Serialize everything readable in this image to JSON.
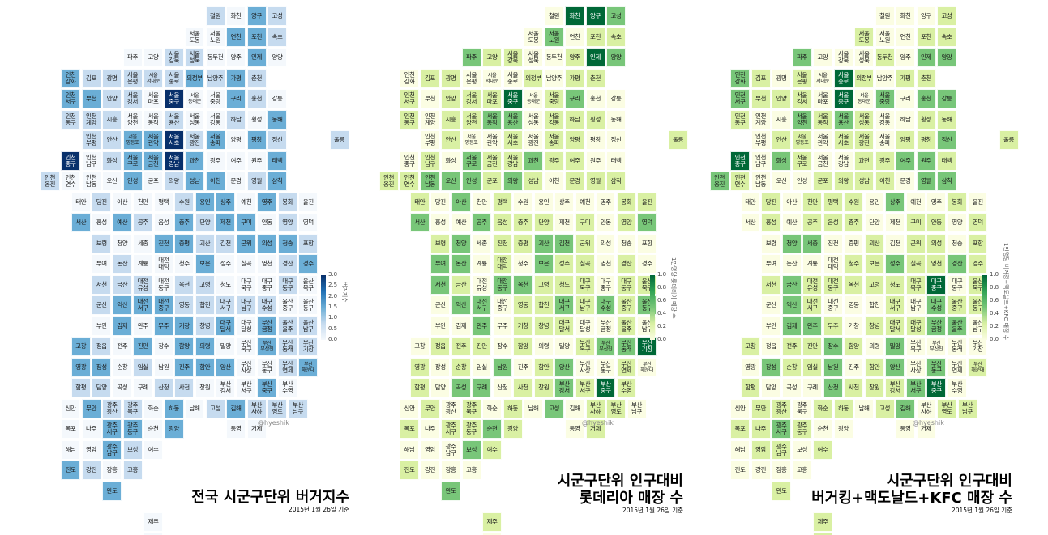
{
  "panels": [
    {
      "title_lines": [
        "전국 시군구단위 버거지수"
      ],
      "date": "2015년 1월 26일 기준",
      "credit": "@hyeshik",
      "legend_label": "버거지수",
      "legend_ticks": [
        "3.0",
        "2.5",
        "2.0",
        "1.5",
        "1.0",
        "0.5",
        "0.0"
      ],
      "palette": [
        "#f4f8fc",
        "#c6dbef",
        "#6baed6",
        "#2171b5",
        "#08306b"
      ],
      "max": 3.0,
      "highlight": [
        "인천중구",
        "서울중구",
        "서울강남",
        "서울서초"
      ]
    },
    {
      "title_lines": [
        "시군구단위 인구대비",
        "롯데리아 매장 수"
      ],
      "date": "2015년 1월 26일 기준",
      "credit": "@hyeshik",
      "legend_label": "1만명당 롯데리아 매장 수",
      "legend_ticks": [
        "1.0",
        "0.8",
        "0.6",
        "0.4",
        "0.2",
        "0.0"
      ],
      "palette": [
        "#fbfde3",
        "#d9f0a3",
        "#78c679",
        "#31a354",
        "#006837"
      ],
      "max": 1.0,
      "highlight": [
        "화천",
        "양구",
        "인제",
        "서울중구",
        "부산중구",
        "부산기장"
      ]
    },
    {
      "title_lines": [
        "시군구단위 인구대비",
        "버거킹+맥도날드+KFC 매장 수"
      ],
      "date": "2015년 1월 26일 기준",
      "credit": "@hyeshik",
      "legend_label": "1만명당 버거킹+맥도날드+KFC 매장 수",
      "legend_ticks": [
        "1.0",
        "0.8",
        "0.6",
        "0.4",
        "0.2",
        "0.0"
      ],
      "palette": [
        "#fbfde3",
        "#d9f0a3",
        "#78c679",
        "#31a354",
        "#006837"
      ],
      "max": 1.0,
      "highlight": [
        "인천중구",
        "서울중구",
        "서울종로",
        "대구중구",
        "부산중구"
      ]
    }
  ],
  "regions": [
    {
      "n": "철원",
      "c": 7,
      "r": 0
    },
    {
      "n": "화천",
      "c": 8,
      "r": 0
    },
    {
      "n": "양구",
      "c": 9,
      "r": 0
    },
    {
      "n": "고성",
      "c": 10,
      "r": 0
    },
    {
      "n": "서울\n도봉",
      "c": 6,
      "r": 1
    },
    {
      "n": "서울\n노원",
      "c": 7,
      "r": 1
    },
    {
      "n": "연천",
      "c": 8,
      "r": 1
    },
    {
      "n": "포천",
      "c": 9,
      "r": 1
    },
    {
      "n": "속초",
      "c": 10,
      "r": 1
    },
    {
      "n": "파주",
      "c": 3,
      "r": 2
    },
    {
      "n": "고양",
      "c": 4,
      "r": 2
    },
    {
      "n": "서울\n강북",
      "c": 5,
      "r": 2
    },
    {
      "n": "서울\n성북",
      "c": 6,
      "r": 2
    },
    {
      "n": "동두천",
      "c": 7,
      "r": 2
    },
    {
      "n": "양주",
      "c": 8,
      "r": 2
    },
    {
      "n": "인제",
      "c": 9,
      "r": 2
    },
    {
      "n": "양양",
      "c": 10,
      "r": 2
    },
    {
      "n": "인천\n강화",
      "c": 0,
      "r": 3
    },
    {
      "n": "김포",
      "c": 1,
      "r": 3
    },
    {
      "n": "광명",
      "c": 2,
      "r": 3
    },
    {
      "n": "서울\n은평",
      "c": 3,
      "r": 3
    },
    {
      "n": "서울\n서대문",
      "c": 4,
      "r": 3
    },
    {
      "n": "서울\n종로",
      "c": 5,
      "r": 3
    },
    {
      "n": "의정부",
      "c": 6,
      "r": 3
    },
    {
      "n": "남양주",
      "c": 7,
      "r": 3
    },
    {
      "n": "가평",
      "c": 8,
      "r": 3
    },
    {
      "n": "춘천",
      "c": 9,
      "r": 3
    },
    {
      "n": "인천\n서구",
      "c": 0,
      "r": 4
    },
    {
      "n": "부천",
      "c": 1,
      "r": 4
    },
    {
      "n": "안양",
      "c": 2,
      "r": 4
    },
    {
      "n": "서울\n강서",
      "c": 3,
      "r": 4
    },
    {
      "n": "서울\n마포",
      "c": 4,
      "r": 4
    },
    {
      "n": "서울\n중구",
      "c": 5,
      "r": 4
    },
    {
      "n": "서울\n동대문",
      "c": 6,
      "r": 4
    },
    {
      "n": "서울\n중랑",
      "c": 7,
      "r": 4
    },
    {
      "n": "구리",
      "c": 8,
      "r": 4
    },
    {
      "n": "홍천",
      "c": 9,
      "r": 4
    },
    {
      "n": "강릉",
      "c": 10,
      "r": 4
    },
    {
      "n": "인천\n동구",
      "c": 0,
      "r": 5
    },
    {
      "n": "인천\n계양",
      "c": 1,
      "r": 5
    },
    {
      "n": "시흥",
      "c": 2,
      "r": 5
    },
    {
      "n": "서울\n양천",
      "c": 3,
      "r": 5
    },
    {
      "n": "서울\n동작",
      "c": 4,
      "r": 5
    },
    {
      "n": "서울\n용산",
      "c": 5,
      "r": 5
    },
    {
      "n": "서울\n성동",
      "c": 6,
      "r": 5
    },
    {
      "n": "서울\n강동",
      "c": 7,
      "r": 5
    },
    {
      "n": "하남",
      "c": 8,
      "r": 5
    },
    {
      "n": "횡성",
      "c": 9,
      "r": 5
    },
    {
      "n": "동해",
      "c": 10,
      "r": 5
    },
    {
      "n": "인천\n부평",
      "c": 1,
      "r": 6
    },
    {
      "n": "안산",
      "c": 2,
      "r": 6
    },
    {
      "n": "서울\n영등포",
      "c": 3,
      "r": 6
    },
    {
      "n": "서울\n관악",
      "c": 4,
      "r": 6
    },
    {
      "n": "서울\n서초",
      "c": 5,
      "r": 6
    },
    {
      "n": "서울\n광진",
      "c": 6,
      "r": 6
    },
    {
      "n": "서울\n송파",
      "c": 7,
      "r": 6
    },
    {
      "n": "양평",
      "c": 8,
      "r": 6
    },
    {
      "n": "평창",
      "c": 9,
      "r": 6
    },
    {
      "n": "정선",
      "c": 10,
      "r": 6
    },
    {
      "n": "울릉",
      "c": 13,
      "r": 6
    },
    {
      "n": "인천\n중구",
      "c": 0,
      "r": 7
    },
    {
      "n": "인천\n남구",
      "c": 1,
      "r": 7
    },
    {
      "n": "화성",
      "c": 2,
      "r": 7
    },
    {
      "n": "서울\n구로",
      "c": 3,
      "r": 7
    },
    {
      "n": "서울\n금천",
      "c": 4,
      "r": 7
    },
    {
      "n": "서울\n강남",
      "c": 5,
      "r": 7
    },
    {
      "n": "과천",
      "c": 6,
      "r": 7
    },
    {
      "n": "광주",
      "c": 7,
      "r": 7
    },
    {
      "n": "여주",
      "c": 8,
      "r": 7
    },
    {
      "n": "원주",
      "c": 9,
      "r": 7
    },
    {
      "n": "태백",
      "c": 10,
      "r": 7
    },
    {
      "n": "인천\n옹진",
      "c": -1,
      "r": 8
    },
    {
      "n": "인천\n연수",
      "c": 0,
      "r": 8
    },
    {
      "n": "인천\n남동",
      "c": 1,
      "r": 8
    },
    {
      "n": "오산",
      "c": 2,
      "r": 8
    },
    {
      "n": "안성",
      "c": 3,
      "r": 8
    },
    {
      "n": "군포",
      "c": 4,
      "r": 8
    },
    {
      "n": "의왕",
      "c": 5,
      "r": 8
    },
    {
      "n": "성남",
      "c": 6,
      "r": 8
    },
    {
      "n": "이천",
      "c": 7,
      "r": 8
    },
    {
      "n": "문경",
      "c": 8,
      "r": 8
    },
    {
      "n": "영월",
      "c": 9,
      "r": 8
    },
    {
      "n": "삼척",
      "c": 10,
      "r": 8
    },
    {
      "n": "태안",
      "c": 0.5,
      "r": 9
    },
    {
      "n": "당진",
      "c": 1.5,
      "r": 9
    },
    {
      "n": "아산",
      "c": 2.5,
      "r": 9
    },
    {
      "n": "천안",
      "c": 3.5,
      "r": 9
    },
    {
      "n": "평택",
      "c": 4.5,
      "r": 9
    },
    {
      "n": "수원",
      "c": 5.5,
      "r": 9
    },
    {
      "n": "용인",
      "c": 6.5,
      "r": 9
    },
    {
      "n": "상주",
      "c": 7.5,
      "r": 9
    },
    {
      "n": "예천",
      "c": 8.5,
      "r": 9
    },
    {
      "n": "영주",
      "c": 9.5,
      "r": 9
    },
    {
      "n": "봉화",
      "c": 10.5,
      "r": 9
    },
    {
      "n": "울진",
      "c": 11.5,
      "r": 9
    },
    {
      "n": "서산",
      "c": 0.5,
      "r": 10
    },
    {
      "n": "홍성",
      "c": 1.5,
      "r": 10
    },
    {
      "n": "예산",
      "c": 2.5,
      "r": 10
    },
    {
      "n": "공주",
      "c": 3.5,
      "r": 10
    },
    {
      "n": "음성",
      "c": 4.5,
      "r": 10
    },
    {
      "n": "충주",
      "c": 5.5,
      "r": 10
    },
    {
      "n": "단양",
      "c": 6.5,
      "r": 10
    },
    {
      "n": "제천",
      "c": 7.5,
      "r": 10
    },
    {
      "n": "구미",
      "c": 8.5,
      "r": 10
    },
    {
      "n": "안동",
      "c": 9.5,
      "r": 10
    },
    {
      "n": "영양",
      "c": 10.5,
      "r": 10
    },
    {
      "n": "영덕",
      "c": 11.5,
      "r": 10
    },
    {
      "n": "보령",
      "c": 1.5,
      "r": 11
    },
    {
      "n": "청양",
      "c": 2.5,
      "r": 11
    },
    {
      "n": "세종",
      "c": 3.5,
      "r": 11
    },
    {
      "n": "진천",
      "c": 4.5,
      "r": 11
    },
    {
      "n": "증평",
      "c": 5.5,
      "r": 11
    },
    {
      "n": "괴산",
      "c": 6.5,
      "r": 11
    },
    {
      "n": "김천",
      "c": 7.5,
      "r": 11
    },
    {
      "n": "군위",
      "c": 8.5,
      "r": 11
    },
    {
      "n": "의성",
      "c": 9.5,
      "r": 11
    },
    {
      "n": "청송",
      "c": 10.5,
      "r": 11
    },
    {
      "n": "포항",
      "c": 11.5,
      "r": 11
    },
    {
      "n": "부여",
      "c": 1.5,
      "r": 12
    },
    {
      "n": "논산",
      "c": 2.5,
      "r": 12
    },
    {
      "n": "계룡",
      "c": 3.5,
      "r": 12
    },
    {
      "n": "대전\n대덕",
      "c": 4.5,
      "r": 12
    },
    {
      "n": "청주",
      "c": 5.5,
      "r": 12
    },
    {
      "n": "보은",
      "c": 6.5,
      "r": 12
    },
    {
      "n": "성주",
      "c": 7.5,
      "r": 12
    },
    {
      "n": "칠곡",
      "c": 8.5,
      "r": 12
    },
    {
      "n": "영천",
      "c": 9.5,
      "r": 12
    },
    {
      "n": "경산",
      "c": 10.5,
      "r": 12
    },
    {
      "n": "경주",
      "c": 11.5,
      "r": 12
    },
    {
      "n": "서천",
      "c": 1.5,
      "r": 13
    },
    {
      "n": "금산",
      "c": 2.5,
      "r": 13
    },
    {
      "n": "대전\n유성",
      "c": 3.5,
      "r": 13
    },
    {
      "n": "대전\n동구",
      "c": 4.5,
      "r": 13
    },
    {
      "n": "옥천",
      "c": 5.5,
      "r": 13
    },
    {
      "n": "고령",
      "c": 6.5,
      "r": 13
    },
    {
      "n": "청도",
      "c": 7.5,
      "r": 13
    },
    {
      "n": "대구\n북구",
      "c": 8.5,
      "r": 13
    },
    {
      "n": "대구\n중구",
      "c": 9.5,
      "r": 13
    },
    {
      "n": "대구\n동구",
      "c": 10.5,
      "r": 13
    },
    {
      "n": "울산\n북구",
      "c": 11.5,
      "r": 13
    },
    {
      "n": "군산",
      "c": 1.5,
      "r": 14
    },
    {
      "n": "익산",
      "c": 2.5,
      "r": 14
    },
    {
      "n": "대전\n서구",
      "c": 3.5,
      "r": 14
    },
    {
      "n": "대전\n중구",
      "c": 4.5,
      "r": 14
    },
    {
      "n": "영동",
      "c": 5.5,
      "r": 14
    },
    {
      "n": "합천",
      "c": 6.5,
      "r": 14
    },
    {
      "n": "대구\n서구",
      "c": 7.5,
      "r": 14
    },
    {
      "n": "대구\n남구",
      "c": 8.5,
      "r": 14
    },
    {
      "n": "대구\n수성",
      "c": 9.5,
      "r": 14
    },
    {
      "n": "울산\n중구",
      "c": 10.5,
      "r": 14
    },
    {
      "n": "울산\n동구",
      "c": 11.5,
      "r": 14
    },
    {
      "n": "부안",
      "c": 1.5,
      "r": 15
    },
    {
      "n": "김제",
      "c": 2.5,
      "r": 15
    },
    {
      "n": "완주",
      "c": 3.5,
      "r": 15
    },
    {
      "n": "무주",
      "c": 4.5,
      "r": 15
    },
    {
      "n": "거창",
      "c": 5.5,
      "r": 15
    },
    {
      "n": "창녕",
      "c": 6.5,
      "r": 15
    },
    {
      "n": "대구\n달서",
      "c": 7.5,
      "r": 15
    },
    {
      "n": "대구\n달성",
      "c": 8.5,
      "r": 15
    },
    {
      "n": "부산\n금정",
      "c": 9.5,
      "r": 15
    },
    {
      "n": "울산\n울주",
      "c": 10.5,
      "r": 15
    },
    {
      "n": "울산\n남구",
      "c": 11.5,
      "r": 15
    },
    {
      "n": "고창",
      "c": 0.5,
      "r": 16
    },
    {
      "n": "정읍",
      "c": 1.5,
      "r": 16
    },
    {
      "n": "전주",
      "c": 2.5,
      "r": 16
    },
    {
      "n": "진안",
      "c": 3.5,
      "r": 16
    },
    {
      "n": "장수",
      "c": 4.5,
      "r": 16
    },
    {
      "n": "함양",
      "c": 5.5,
      "r": 16
    },
    {
      "n": "의령",
      "c": 6.5,
      "r": 16
    },
    {
      "n": "밀양",
      "c": 7.5,
      "r": 16
    },
    {
      "n": "부산\n북구",
      "c": 8.5,
      "r": 16
    },
    {
      "n": "부산\n부산진",
      "c": 9.5,
      "r": 16
    },
    {
      "n": "부산\n동래",
      "c": 10.5,
      "r": 16
    },
    {
      "n": "부산\n기장",
      "c": 11.5,
      "r": 16
    },
    {
      "n": "영광",
      "c": 0.5,
      "r": 17
    },
    {
      "n": "장성",
      "c": 1.5,
      "r": 17
    },
    {
      "n": "순창",
      "c": 2.5,
      "r": 17
    },
    {
      "n": "임실",
      "c": 3.5,
      "r": 17
    },
    {
      "n": "남원",
      "c": 4.5,
      "r": 17
    },
    {
      "n": "진주",
      "c": 5.5,
      "r": 17
    },
    {
      "n": "함안",
      "c": 6.5,
      "r": 17
    },
    {
      "n": "양산",
      "c": 7.5,
      "r": 17
    },
    {
      "n": "부산\n사상",
      "c": 8.5,
      "r": 17
    },
    {
      "n": "부산\n동구",
      "c": 9.5,
      "r": 17
    },
    {
      "n": "부산\n연제",
      "c": 10.5,
      "r": 17
    },
    {
      "n": "부산\n해운대",
      "c": 11.5,
      "r": 17
    },
    {
      "n": "함평",
      "c": 0.5,
      "r": 18
    },
    {
      "n": "담양",
      "c": 1.5,
      "r": 18
    },
    {
      "n": "곡성",
      "c": 2.5,
      "r": 18
    },
    {
      "n": "구례",
      "c": 3.5,
      "r": 18
    },
    {
      "n": "산청",
      "c": 4.5,
      "r": 18
    },
    {
      "n": "사천",
      "c": 5.5,
      "r": 18
    },
    {
      "n": "창원",
      "c": 6.5,
      "r": 18
    },
    {
      "n": "부산\n강서",
      "c": 7.5,
      "r": 18
    },
    {
      "n": "부산\n서구",
      "c": 8.5,
      "r": 18
    },
    {
      "n": "부산\n중구",
      "c": 9.5,
      "r": 18
    },
    {
      "n": "부산\n수영",
      "c": 10.5,
      "r": 18
    },
    {
      "n": "신안",
      "c": 0,
      "r": 19
    },
    {
      "n": "무안",
      "c": 1,
      "r": 19
    },
    {
      "n": "광주\n광산",
      "c": 2,
      "r": 19
    },
    {
      "n": "광주\n북구",
      "c": 3,
      "r": 19
    },
    {
      "n": "화순",
      "c": 4,
      "r": 19
    },
    {
      "n": "하동",
      "c": 5,
      "r": 19
    },
    {
      "n": "남해",
      "c": 6,
      "r": 19
    },
    {
      "n": "고성",
      "c": 7,
      "r": 19
    },
    {
      "n": "김해",
      "c": 8,
      "r": 19
    },
    {
      "n": "부산\n사하",
      "c": 9,
      "r": 19
    },
    {
      "n": "부산\n영도",
      "c": 10,
      "r": 19
    },
    {
      "n": "부산\n남구",
      "c": 11,
      "r": 19
    },
    {
      "n": "목포",
      "c": 0,
      "r": 20
    },
    {
      "n": "나주",
      "c": 1,
      "r": 20
    },
    {
      "n": "광주\n서구",
      "c": 2,
      "r": 20
    },
    {
      "n": "광주\n동구",
      "c": 3,
      "r": 20
    },
    {
      "n": "순천",
      "c": 4,
      "r": 20
    },
    {
      "n": "광양",
      "c": 5,
      "r": 20
    },
    {
      "n": "통영",
      "c": 8,
      "r": 20
    },
    {
      "n": "거제",
      "c": 9,
      "r": 20
    },
    {
      "n": "해남",
      "c": 0,
      "r": 21
    },
    {
      "n": "영암",
      "c": 1,
      "r": 21
    },
    {
      "n": "광주\n남구",
      "c": 2,
      "r": 21
    },
    {
      "n": "보성",
      "c": 3,
      "r": 21
    },
    {
      "n": "여수",
      "c": 4,
      "r": 21
    },
    {
      "n": "진도",
      "c": 0,
      "r": 22
    },
    {
      "n": "강진",
      "c": 1,
      "r": 22
    },
    {
      "n": "장흥",
      "c": 2,
      "r": 22
    },
    {
      "n": "고흥",
      "c": 3,
      "r": 22
    },
    {
      "n": "완도",
      "c": 2,
      "r": 23
    },
    {
      "n": "제주",
      "c": 4,
      "r": 24.5
    },
    {
      "n": "서귀포",
      "c": 4,
      "r": 25.5
    }
  ]
}
